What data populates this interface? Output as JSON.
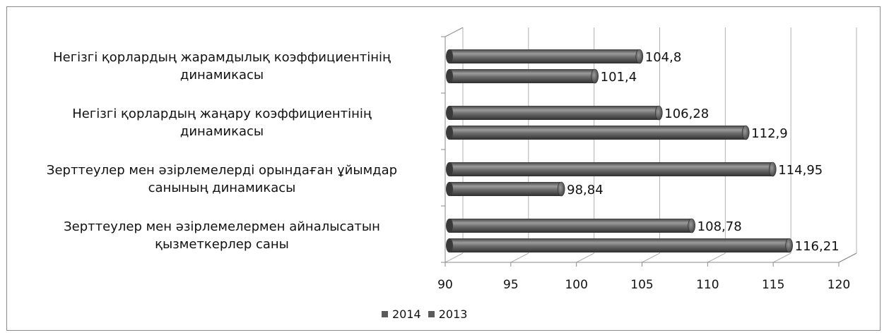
{
  "chart_data": {
    "type": "bar",
    "orientation": "horizontal",
    "categories": [
      "Негізгі қорлардың жарамдылық коэффициентінің динамикасы",
      "Негізгі қорлардың жаңару коэффициентінің динамикасы",
      "Зерттеулер мен әзірлемелерді орындаған ұйымдар санының динамикасы",
      "Зерттеулер мен әзірлемелермен айналысатын қызметкерлер саны"
    ],
    "category_lines": [
      [
        "Негізгі қорлардың жарамдылық коэффициентінің",
        "динамикасы"
      ],
      [
        "Негізгі қорлардың жаңару коэффициентінің",
        "динамикасы"
      ],
      [
        "Зерттеулер мен әзірлемелерді орындаған ұйымдар",
        "санының  динамикасы"
      ],
      [
        "Зерттеулер мен әзірлемелермен айналысатын",
        "қызметкерлер саны"
      ]
    ],
    "series": [
      {
        "name": "2014",
        "values": [
          104.8,
          106.28,
          114.95,
          108.78
        ],
        "labels": [
          "104,8",
          "106,28",
          "114,95",
          "108,78"
        ]
      },
      {
        "name": "2013",
        "values": [
          101.4,
          112.9,
          98.84,
          116.21
        ],
        "labels": [
          "101,4",
          "112,9",
          "98,84",
          "116,21"
        ]
      }
    ],
    "xlim": [
      90,
      120
    ],
    "xticks": [
      "90",
      "95",
      "100",
      "105",
      "110",
      "115",
      "120"
    ],
    "legend_position": "bottom",
    "style": "3d-cylinder",
    "grid": true,
    "colors": {
      "bar": "#5a5a5a",
      "bar_highlight": "#9a9a9a",
      "grid": "#b0b0b0"
    }
  }
}
